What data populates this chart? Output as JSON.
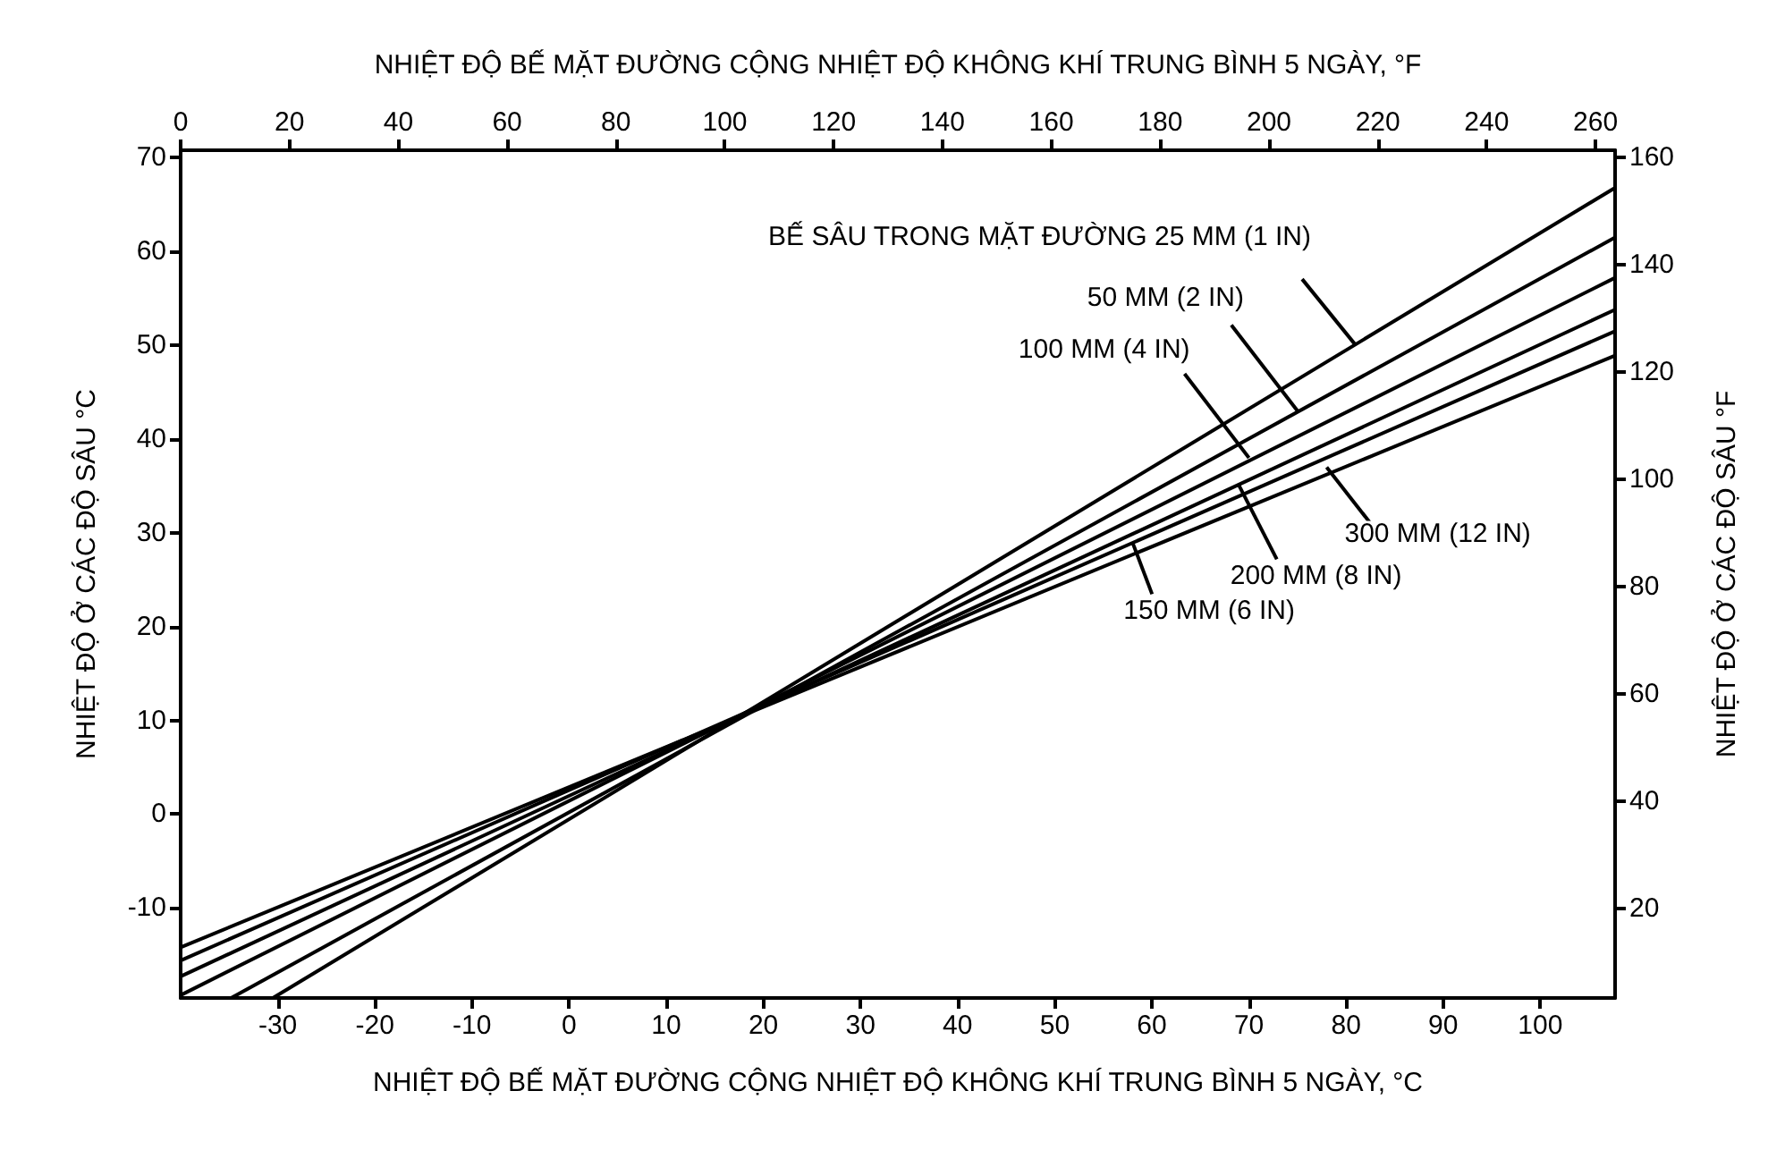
{
  "chart_data": {
    "type": "line",
    "xlabel": "NHIỆT ĐỘ BẾ MẶT ĐƯỜNG CỘNG NHIỆT ĐỘ KHÔNG KHÍ TRUNG BÌNH 5 NGÀY, °C",
    "x2label": "NHIỆT ĐỘ BẾ MẶT ĐƯỜNG CỘNG NHIỆT ĐỘ KHÔNG KHÍ TRUNG BÌNH 5 NGÀY, °F",
    "ylabel": "NHIỆT ĐỘ Ở CÁC ĐỘ SÂU °C",
    "y2label": "NHIỆT ĐỘ Ở CÁC ĐỘ SÂU °F",
    "xlim": [
      -40,
      107.7
    ],
    "xticks": [
      -30,
      -20,
      -10,
      0,
      10,
      20,
      30,
      40,
      50,
      60,
      70,
      80,
      90,
      100
    ],
    "x2lim": [
      0,
      263.6
    ],
    "x2ticks": [
      0,
      20,
      40,
      60,
      80,
      100,
      120,
      140,
      160,
      180,
      200,
      220,
      240,
      260
    ],
    "ylim": [
      -19.6,
      70.8
    ],
    "yticks": [
      -10,
      0,
      10,
      20,
      30,
      40,
      50,
      60,
      70
    ],
    "y2lim": [
      3.3,
      161.4
    ],
    "y2ticks": [
      20,
      40,
      60,
      80,
      100,
      120,
      140,
      160
    ],
    "grid": false,
    "marker": "none",
    "line_style": "solid",
    "series": [
      {
        "color": "#000000",
        "x": [
          -30.5,
          107.7
        ],
        "values": [
          -19.6,
          66.8
        ]
      },
      {
        "color": "#000000",
        "x": [
          -34.8,
          107.7
        ],
        "values": [
          -19.6,
          61.5
        ]
      },
      {
        "color": "#000000",
        "x": [
          -40,
          107.7
        ],
        "values": [
          -19.3,
          57.2
        ]
      },
      {
        "color": "#000000",
        "x": [
          -40,
          107.7
        ],
        "values": [
          -17.3,
          53.8
        ]
      },
      {
        "color": "#000000",
        "x": [
          -40,
          107.7
        ],
        "values": [
          -15.6,
          51.5
        ]
      },
      {
        "color": "#000000",
        "x": [
          -40,
          107.7
        ],
        "values": [
          -14.2,
          48.9
        ]
      }
    ],
    "annotations": [
      {
        "text": "BẾ SÂU TRONG MẶT ĐƯỜNG 25 MM (1 IN)",
        "x": 81,
        "y": 50
      },
      {
        "text": "50 MM (2 IN)",
        "x": 75,
        "y": 43
      },
      {
        "text": "100 MM (4 IN)",
        "x": 70,
        "y": 38
      },
      {
        "text": "300 MM (12 IN)",
        "x": 78,
        "y": 37
      },
      {
        "text": "200 MM (8 IN)",
        "x": 69,
        "y": 35
      },
      {
        "text": "150 MM (6 IN)",
        "x": 58,
        "y": 29
      }
    ]
  }
}
